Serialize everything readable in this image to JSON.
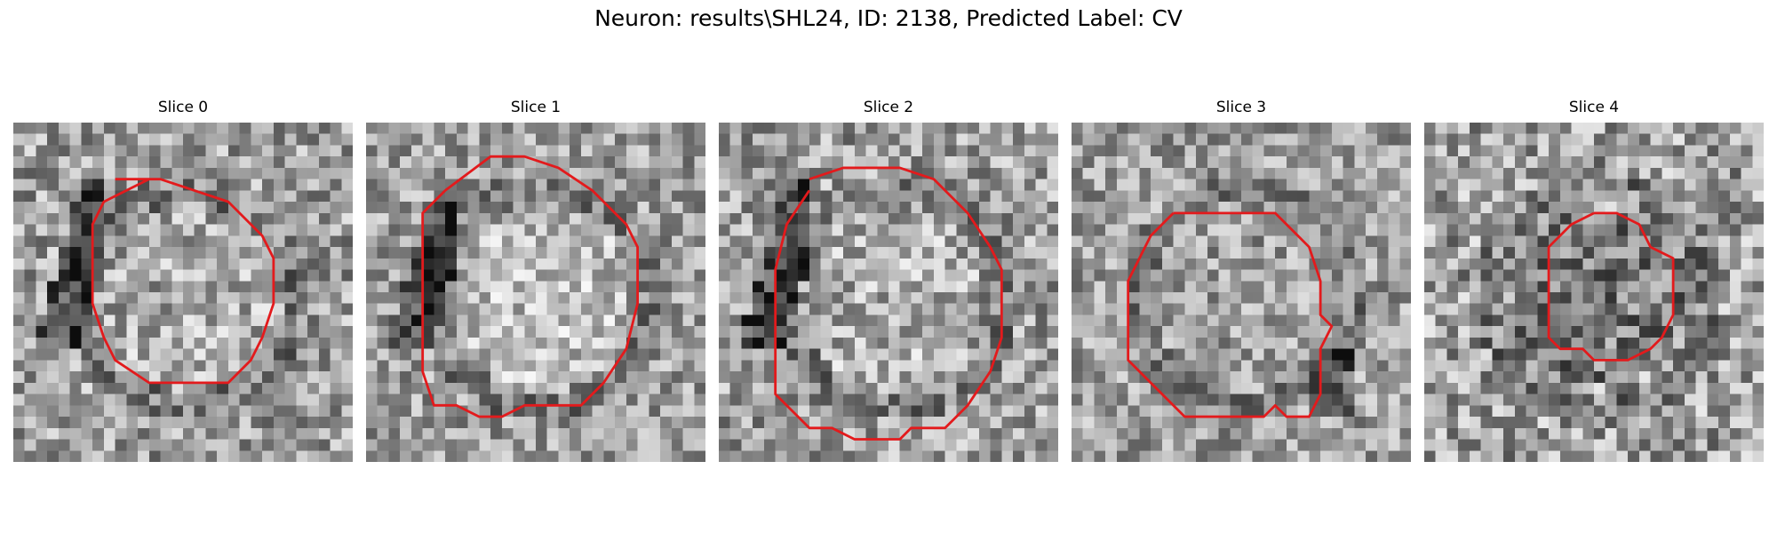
{
  "figure": {
    "title": "Neuron: results\\SHL24, ID: 2138, Predicted Label: CV",
    "outline_color": "#e31a1c",
    "image_colormap": "gray",
    "grid_size": 30
  },
  "slices": [
    {
      "label": "Slice 0",
      "seed": 11,
      "dark_arc": "left",
      "bright_center": 0.6,
      "noise": 0.55,
      "contour": [
        [
          9,
          5
        ],
        [
          13,
          5
        ],
        [
          16,
          6
        ],
        [
          19,
          7
        ],
        [
          22,
          10
        ],
        [
          23,
          12
        ],
        [
          23,
          16
        ],
        [
          22,
          19
        ],
        [
          21,
          21
        ],
        [
          19,
          23
        ],
        [
          12,
          23
        ],
        [
          9,
          21
        ],
        [
          8,
          19
        ],
        [
          7,
          16
        ],
        [
          7,
          9
        ],
        [
          8,
          7
        ],
        [
          12,
          5
        ]
      ]
    },
    {
      "label": "Slice 1",
      "seed": 23,
      "dark_arc": "left",
      "bright_center": 0.7,
      "noise": 0.5,
      "contour": [
        [
          7,
          6
        ],
        [
          11,
          3
        ],
        [
          14,
          3
        ],
        [
          17,
          4
        ],
        [
          20,
          6
        ],
        [
          23,
          9
        ],
        [
          24,
          11
        ],
        [
          24,
          16
        ],
        [
          23,
          20
        ],
        [
          21,
          23
        ],
        [
          19,
          25
        ],
        [
          14,
          25
        ],
        [
          12,
          26
        ],
        [
          10,
          26
        ],
        [
          8,
          25
        ],
        [
          6,
          25
        ],
        [
          5,
          22
        ],
        [
          5,
          8
        ],
        [
          7,
          6
        ]
      ]
    },
    {
      "label": "Slice 2",
      "seed": 37,
      "dark_arc": "left",
      "bright_center": 0.62,
      "noise": 0.55,
      "contour": [
        [
          8,
          5
        ],
        [
          11,
          4
        ],
        [
          16,
          4
        ],
        [
          19,
          5
        ],
        [
          22,
          8
        ],
        [
          24,
          11
        ],
        [
          25,
          13
        ],
        [
          25,
          19
        ],
        [
          24,
          22
        ],
        [
          22,
          25
        ],
        [
          20,
          27
        ],
        [
          17,
          27
        ],
        [
          16,
          28
        ],
        [
          12,
          28
        ],
        [
          10,
          27
        ],
        [
          8,
          27
        ],
        [
          6,
          25
        ],
        [
          5,
          24
        ],
        [
          5,
          13
        ],
        [
          6,
          9
        ],
        [
          8,
          6
        ]
      ]
    },
    {
      "label": "Slice 3",
      "seed": 49,
      "dark_arc": "right",
      "bright_center": 0.55,
      "noise": 0.5,
      "contour": [
        [
          9,
          8
        ],
        [
          18,
          8
        ],
        [
          21,
          11
        ],
        [
          22,
          14
        ],
        [
          22,
          17
        ],
        [
          23,
          18
        ],
        [
          22,
          20
        ],
        [
          22,
          24
        ],
        [
          21,
          26
        ],
        [
          19,
          26
        ],
        [
          18,
          25
        ],
        [
          17,
          26
        ],
        [
          10,
          26
        ],
        [
          7,
          23
        ],
        [
          5,
          21
        ],
        [
          5,
          14
        ],
        [
          7,
          10
        ],
        [
          9,
          8
        ]
      ]
    },
    {
      "label": "Slice 4",
      "seed": 61,
      "dark_arc": "none",
      "bright_center": 0.38,
      "noise": 0.6,
      "contour": [
        [
          15,
          8
        ],
        [
          17,
          8
        ],
        [
          19,
          9
        ],
        [
          20,
          11
        ],
        [
          22,
          12
        ],
        [
          22,
          17
        ],
        [
          21,
          19
        ],
        [
          20,
          20
        ],
        [
          18,
          21
        ],
        [
          15,
          21
        ],
        [
          14,
          20
        ],
        [
          12,
          20
        ],
        [
          11,
          19
        ],
        [
          11,
          11
        ],
        [
          13,
          9
        ],
        [
          15,
          8
        ]
      ]
    }
  ]
}
